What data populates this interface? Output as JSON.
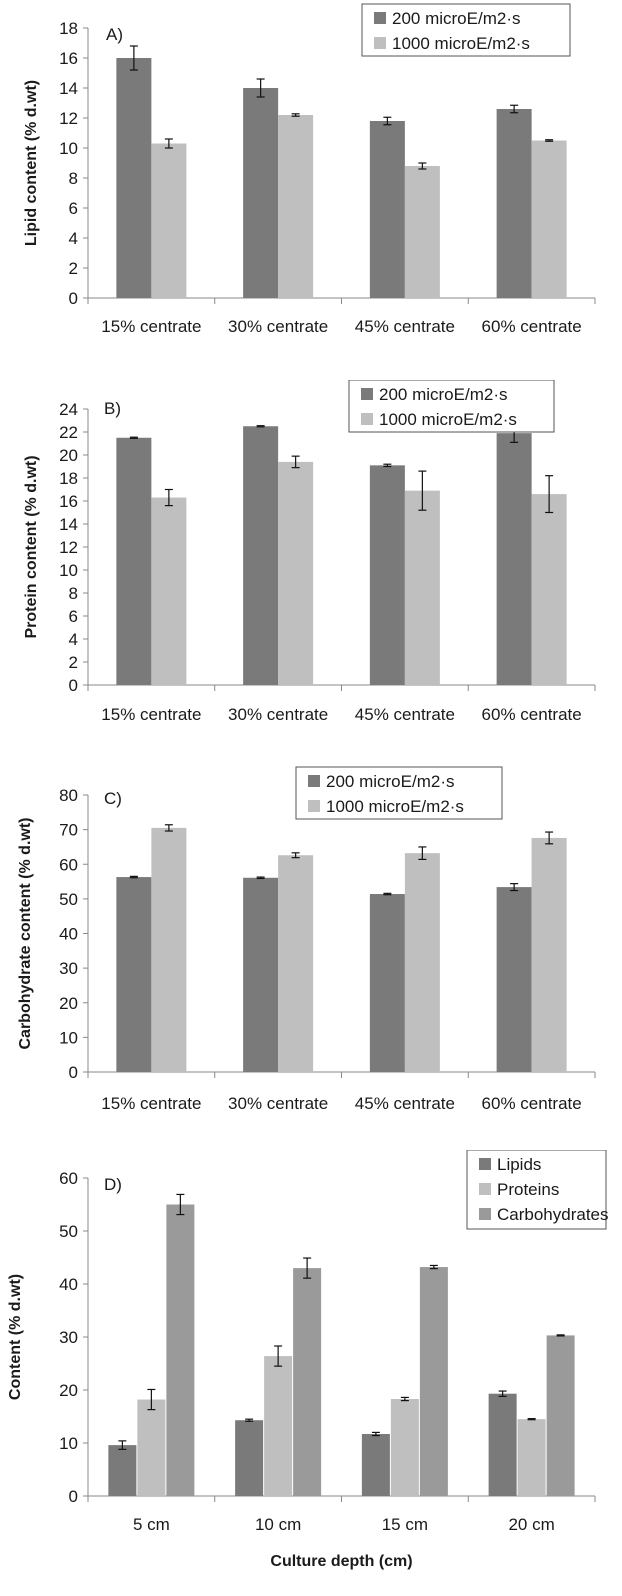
{
  "chart_data": [
    {
      "type": "bar",
      "panel_label": "A)",
      "ylabel": "Lipid content (% d.wt)",
      "xlabel": "",
      "ylim": [
        0,
        18
      ],
      "ytick_step": 2,
      "categories": [
        "15% centrate",
        "30% centrate",
        "45% centrate",
        "60% centrate"
      ],
      "series": [
        {
          "name": "200 microE/m2·s",
          "color": "#7a7a7a",
          "values": [
            16.0,
            14.0,
            11.8,
            12.6
          ],
          "errors": [
            0.8,
            0.6,
            0.25,
            0.25
          ]
        },
        {
          "name": "1000 microE/m2·s",
          "color": "#bfbfbf",
          "values": [
            10.3,
            12.2,
            8.8,
            10.5
          ],
          "errors": [
            0.3,
            0.08,
            0.2,
            0.05
          ]
        }
      ],
      "legend": "top-right"
    },
    {
      "type": "bar",
      "panel_label": "B)",
      "ylabel": "Protein  content (% d.wt)",
      "xlabel": "",
      "ylim": [
        0,
        24
      ],
      "ytick_step": 2,
      "categories": [
        "15% centrate",
        "30% centrate",
        "45% centrate",
        "60% centrate"
      ],
      "series": [
        {
          "name": "200 microE/m2·s",
          "color": "#7a7a7a",
          "values": [
            21.5,
            22.5,
            19.1,
            21.9
          ],
          "errors": [
            0.05,
            0.05,
            0.1,
            0.8
          ]
        },
        {
          "name": "1000 microE/m2·s",
          "color": "#bfbfbf",
          "values": [
            16.3,
            19.4,
            16.9,
            16.6
          ],
          "errors": [
            0.7,
            0.5,
            1.7,
            1.6
          ]
        }
      ],
      "legend": "top-right"
    },
    {
      "type": "bar",
      "panel_label": "C)",
      "ylabel": "Carbohydrate content (% d.wt)",
      "xlabel": "",
      "ylim": [
        0,
        80
      ],
      "ytick_step": 10,
      "categories": [
        "15% centrate",
        "30% centrate",
        "45% centrate",
        "60% centrate"
      ],
      "series": [
        {
          "name": "200 microE/m2·s",
          "color": "#7a7a7a",
          "values": [
            56.3,
            56.1,
            51.4,
            53.4
          ],
          "errors": [
            0.2,
            0.2,
            0.2,
            1.0
          ]
        },
        {
          "name": "1000 microE/m2·s",
          "color": "#bfbfbf",
          "values": [
            70.5,
            62.6,
            63.2,
            67.6
          ],
          "errors": [
            0.9,
            0.7,
            1.8,
            1.7
          ]
        }
      ],
      "legend": "top-right"
    },
    {
      "type": "bar",
      "panel_label": "D)",
      "ylabel": "Content (% d.wt)",
      "xlabel": "Culture depth (cm)",
      "ylim": [
        0,
        60
      ],
      "ytick_step": 10,
      "categories": [
        "5 cm",
        "10 cm",
        "15 cm",
        "20 cm"
      ],
      "series": [
        {
          "name": "Lipids",
          "color": "#7a7a7a",
          "values": [
            9.6,
            14.3,
            11.7,
            19.3
          ],
          "errors": [
            0.8,
            0.2,
            0.3,
            0.5
          ]
        },
        {
          "name": "Proteins",
          "color": "#bfbfbf",
          "values": [
            18.2,
            26.4,
            18.3,
            14.5
          ],
          "errors": [
            1.9,
            1.9,
            0.3,
            0.1
          ]
        },
        {
          "name": "Carbohydrates",
          "color": "#9a9a9a",
          "values": [
            55.0,
            43.0,
            43.2,
            30.3
          ],
          "errors": [
            1.9,
            1.9,
            0.3,
            0.1
          ]
        }
      ],
      "legend": "top-right"
    }
  ]
}
